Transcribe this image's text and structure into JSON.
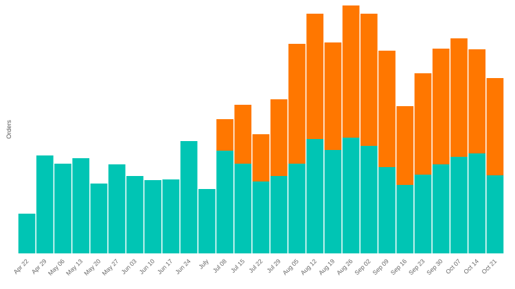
{
  "chart_data": {
    "type": "bar",
    "stacked": true,
    "ylabel": "Orders",
    "xlabel": "",
    "categories": [
      "Apr 22",
      "Apr 29",
      "May 06",
      "May 13",
      "May 20",
      "May 27",
      "Jun 03",
      "Jun 10",
      "Jun 17",
      "Jun 24",
      "July",
      "Jul 08",
      "Jul 15",
      "Jul 22",
      "Jul 29",
      "Aug 05",
      "Aug 12",
      "Aug 19",
      "Aug 26",
      "Sep 02",
      "Sep 09",
      "Sep 16",
      "Sep 23",
      "Sep 30",
      "Oct 07",
      "Oct 14",
      "Oct 21"
    ],
    "series": [
      {
        "color": "#00c5b4",
        "values": [
          58,
          143,
          131,
          139,
          102,
          130,
          113,
          107,
          108,
          164,
          94,
          150,
          131,
          105,
          113,
          131,
          167,
          151,
          169,
          157,
          126,
          100,
          115,
          130,
          141,
          146,
          114
        ]
      },
      {
        "color": "#ff7700",
        "values": [
          0,
          0,
          0,
          0,
          0,
          0,
          0,
          0,
          0,
          0,
          0,
          46,
          86,
          69,
          112,
          175,
          183,
          157,
          193,
          193,
          170,
          115,
          148,
          169,
          173,
          152,
          142
        ]
      }
    ],
    "ylim": [
      0,
      365
    ],
    "grid": false,
    "legend": "none"
  }
}
